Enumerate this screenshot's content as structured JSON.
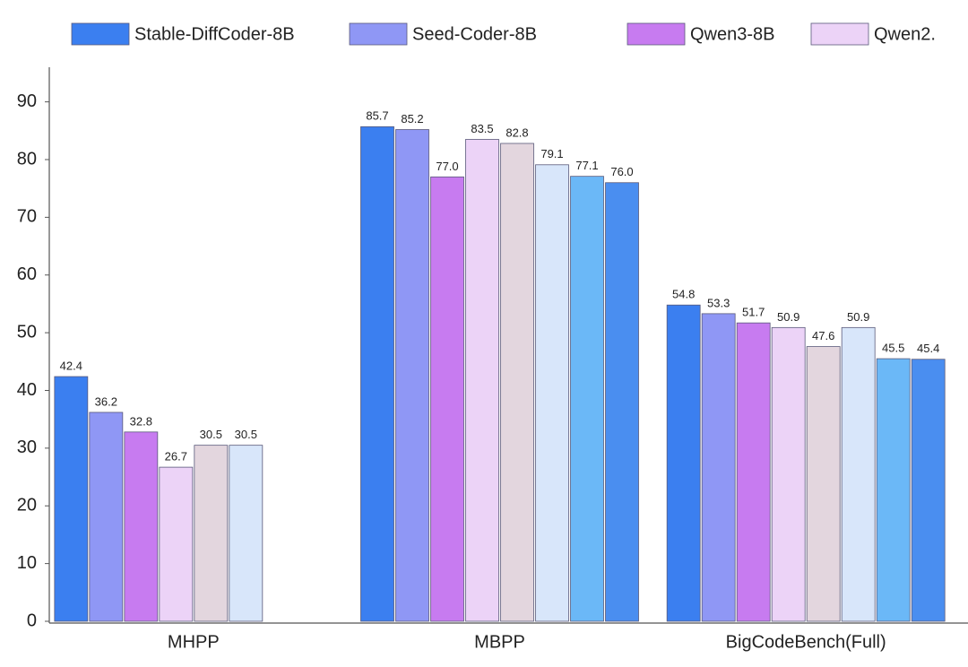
{
  "chart_data": {
    "type": "grouped_bar",
    "categories": [
      "MHPP",
      "MBPP",
      "BigCodeBench(Full)"
    ],
    "series": [
      {
        "name": "Stable-DiffCoder-8B",
        "color": "#3b7ff0",
        "values": [
          42.4,
          85.7,
          54.8
        ]
      },
      {
        "name": "Seed-Coder-8B",
        "color": "#8f97f5",
        "values": [
          36.2,
          85.2,
          53.3
        ]
      },
      {
        "name": "Qwen3-8B",
        "color": "#c77bf0",
        "values": [
          32.8,
          77,
          51.7
        ],
        "value_labels": [
          "32.8",
          "77.0",
          "51.7"
        ]
      },
      {
        "name": "Qwen2.",
        "color": "#ecd3f7",
        "values": [
          26.7,
          83.5,
          50.9
        ]
      },
      {
        "color": "#e3d6de",
        "values": [
          30.5,
          82.8,
          47.6
        ]
      },
      {
        "color": "#d8e6fa",
        "values": [
          30.5,
          79.1,
          50.9
        ]
      },
      {
        "color": "#6bb8f7",
        "values": [
          null,
          77.1,
          45.5
        ]
      },
      {
        "color": "#4a8ef0",
        "values": [
          null,
          76,
          45.4
        ],
        "value_labels": [
          null,
          "76.0",
          "45.4"
        ]
      }
    ],
    "ylim": [
      0,
      96
    ],
    "yticks": [
      0,
      10,
      20,
      30,
      40,
      50,
      60,
      70,
      80,
      90
    ]
  }
}
